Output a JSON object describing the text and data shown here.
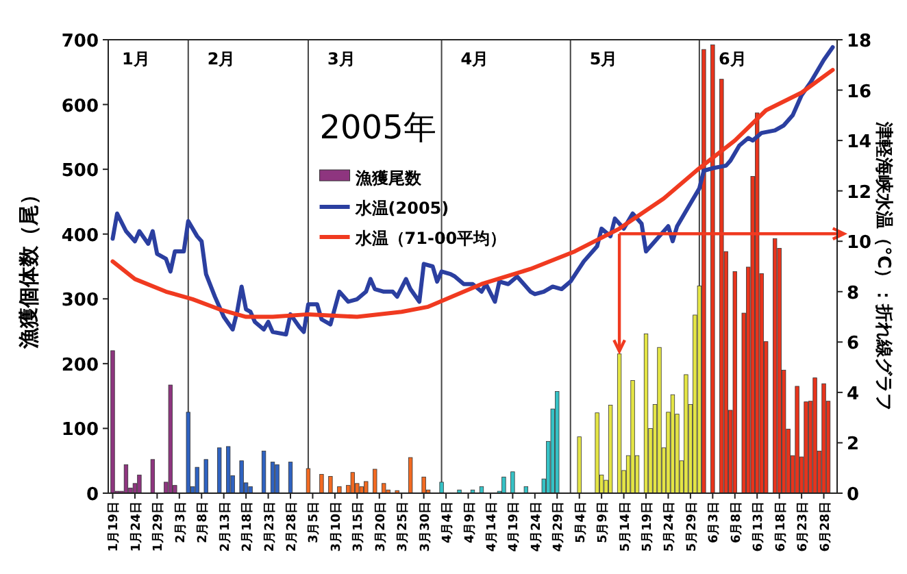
{
  "chart_data": {
    "type": "bar",
    "title": "2005年",
    "ylabel": "漁獲個体数（尾）",
    "y2label": "津軽海峡水温（°C）：折れ線グラフ",
    "xlim": [
      "2005-01-18",
      "2005-07-01"
    ],
    "xticks": [
      {
        "value": "2005-01-19",
        "label": "1月19日"
      },
      {
        "value": "2005-01-24",
        "label": "1月24日"
      },
      {
        "value": "2005-01-29",
        "label": "1月29日"
      },
      {
        "value": "2005-02-03",
        "label": "2月3日"
      },
      {
        "value": "2005-02-08",
        "label": "2月8日"
      },
      {
        "value": "2005-02-13",
        "label": "2月13日"
      },
      {
        "value": "2005-02-18",
        "label": "2月18日"
      },
      {
        "value": "2005-02-23",
        "label": "2月23日"
      },
      {
        "value": "2005-02-28",
        "label": "2月28日"
      },
      {
        "value": "2005-03-05",
        "label": "3月5日"
      },
      {
        "value": "2005-03-10",
        "label": "3月10日"
      },
      {
        "value": "2005-03-15",
        "label": "3月15日"
      },
      {
        "value": "2005-03-20",
        "label": "3月20日"
      },
      {
        "value": "2005-03-25",
        "label": "3月25日"
      },
      {
        "value": "2005-03-30",
        "label": "3月30日"
      },
      {
        "value": "2005-04-04",
        "label": "4月4日"
      },
      {
        "value": "2005-04-09",
        "label": "4月9日"
      },
      {
        "value": "2005-04-14",
        "label": "4月14日"
      },
      {
        "value": "2005-04-19",
        "label": "4月19日"
      },
      {
        "value": "2005-04-24",
        "label": "4月24日"
      },
      {
        "value": "2005-04-29",
        "label": "4月29日"
      },
      {
        "value": "2005-05-04",
        "label": "5月4日"
      },
      {
        "value": "2005-05-09",
        "label": "5月9日"
      },
      {
        "value": "2005-05-14",
        "label": "5月14日"
      },
      {
        "value": "2005-05-19",
        "label": "5月19日"
      },
      {
        "value": "2005-05-24",
        "label": "5月24日"
      },
      {
        "value": "2005-05-29",
        "label": "5月29日"
      },
      {
        "value": "2005-06-03",
        "label": "6月3日"
      },
      {
        "value": "2005-06-08",
        "label": "6月8日"
      },
      {
        "value": "2005-06-13",
        "label": "6月13日"
      },
      {
        "value": "2005-06-18",
        "label": "6月18日"
      },
      {
        "value": "2005-06-23",
        "label": "6月23日"
      },
      {
        "value": "2005-06-28",
        "label": "6月28日"
      }
    ],
    "ylim": [
      0,
      700
    ],
    "yticks": [
      0,
      100,
      200,
      300,
      400,
      500,
      600,
      700
    ],
    "y2lim": [
      0,
      18
    ],
    "y2ticks": [
      0,
      2,
      4,
      6,
      8,
      10,
      12,
      14,
      16,
      18
    ],
    "legend": "top left",
    "series": [
      {
        "name": "漁獲尾数",
        "color": "#8e357f",
        "x": [
          "2005-01-19",
          "2005-01-20",
          "2005-01-21",
          "2005-01-22",
          "2005-01-23",
          "2005-01-24",
          "2005-01-25",
          "2005-01-28",
          "2005-01-31",
          "2005-02-01",
          "2005-02-02",
          "2005-02-05",
          "2005-02-06",
          "2005-02-07",
          "2005-02-09",
          "2005-02-12",
          "2005-02-14",
          "2005-02-15",
          "2005-02-17",
          "2005-02-18",
          "2005-02-19",
          "2005-02-22",
          "2005-02-24",
          "2005-02-25",
          "2005-02-28",
          "2005-03-04",
          "2005-03-07",
          "2005-03-09",
          "2005-03-11",
          "2005-03-13",
          "2005-03-14",
          "2005-03-15",
          "2005-03-16",
          "2005-03-17",
          "2005-03-19",
          "2005-03-21",
          "2005-03-22",
          "2005-03-24",
          "2005-03-27",
          "2005-03-30",
          "2005-03-31",
          "2005-04-03",
          "2005-04-07",
          "2005-04-10",
          "2005-04-12",
          "2005-04-16",
          "2005-04-17",
          "2005-04-19",
          "2005-04-22",
          "2005-04-26",
          "2005-04-27",
          "2005-04-28",
          "2005-04-29",
          "2005-05-04",
          "2005-05-08",
          "2005-05-09",
          "2005-05-10",
          "2005-05-11",
          "2005-05-13",
          "2005-05-14",
          "2005-05-15",
          "2005-05-16",
          "2005-05-17",
          "2005-05-19",
          "2005-05-20",
          "2005-05-21",
          "2005-05-22",
          "2005-05-23",
          "2005-05-24",
          "2005-05-25",
          "2005-05-26",
          "2005-05-27",
          "2005-05-28",
          "2005-05-29",
          "2005-05-30",
          "2005-05-31",
          "2005-06-01",
          "2005-06-03",
          "2005-06-05",
          "2005-06-06",
          "2005-06-07",
          "2005-06-08",
          "2005-06-10",
          "2005-06-11",
          "2005-06-12",
          "2005-06-13",
          "2005-06-14",
          "2005-06-15",
          "2005-06-17",
          "2005-06-18",
          "2005-06-19",
          "2005-06-20",
          "2005-06-21",
          "2005-06-22",
          "2005-06-23",
          "2005-06-24",
          "2005-06-25",
          "2005-06-26",
          "2005-06-27",
          "2005-06-28",
          "2005-06-29"
        ],
        "values": [
          220,
          3,
          3,
          44,
          8,
          15,
          28,
          52,
          17,
          167,
          12,
          125,
          10,
          40,
          52,
          70,
          72,
          27,
          50,
          16,
          10,
          65,
          48,
          44,
          48,
          38,
          29,
          26,
          10,
          12,
          32,
          15,
          10,
          18,
          37,
          15,
          5,
          4,
          55,
          25,
          5,
          17,
          5,
          5,
          10,
          3,
          25,
          33,
          10,
          22,
          80,
          130,
          157,
          87,
          124,
          28,
          20,
          136,
          215,
          35,
          58,
          174,
          58,
          246,
          100,
          137,
          225,
          70,
          125,
          152,
          122,
          50,
          183,
          137,
          275,
          320,
          685,
          692,
          639,
          373,
          128,
          342,
          278,
          349,
          489,
          587,
          339,
          234,
          393,
          378,
          190,
          99,
          58,
          165,
          56,
          141,
          142,
          178,
          65,
          169,
          142
        ],
        "colors": [
          "#8e357f",
          "#8e357f",
          "#8e357f",
          "#8e357f",
          "#8e357f",
          "#8e357f",
          "#8e357f",
          "#8e357f",
          "#8e357f",
          "#8e357f",
          "#8e357f",
          "#2f62c0",
          "#2f62c0",
          "#2f62c0",
          "#2f62c0",
          "#2f62c0",
          "#2f62c0",
          "#2f62c0",
          "#2f62c0",
          "#2f62c0",
          "#2f62c0",
          "#2f62c0",
          "#2f62c0",
          "#2f62c0",
          "#2f62c0",
          "#f26a22",
          "#f26a22",
          "#f26a22",
          "#f26a22",
          "#f26a22",
          "#f26a22",
          "#f26a22",
          "#f26a22",
          "#f26a22",
          "#f26a22",
          "#f26a22",
          "#f26a22",
          "#f26a22",
          "#f26a22",
          "#f26a22",
          "#f26a22",
          "#36c2c6",
          "#36c2c6",
          "#36c2c6",
          "#36c2c6",
          "#36c2c6",
          "#36c2c6",
          "#36c2c6",
          "#36c2c6",
          "#36c2c6",
          "#36c2c6",
          "#36c2c6",
          "#36c2c6",
          "#e4e545",
          "#e4e545",
          "#e4e545",
          "#e4e545",
          "#e4e545",
          "#e4e545",
          "#e4e545",
          "#e4e545",
          "#e4e545",
          "#e4e545",
          "#e4e545",
          "#e4e545",
          "#e4e545",
          "#e4e545",
          "#e4e545",
          "#e4e545",
          "#e4e545",
          "#e4e545",
          "#e4e545",
          "#e4e545",
          "#e4e545",
          "#e4e545",
          "#e4e545",
          "#e8341c",
          "#e8341c",
          "#e8341c",
          "#e8341c",
          "#e8341c",
          "#e8341c",
          "#e8341c",
          "#e8341c",
          "#e8341c",
          "#e8341c",
          "#e8341c",
          "#e8341c",
          "#e8341c",
          "#e8341c",
          "#e8341c",
          "#e8341c",
          "#e8341c",
          "#e8341c",
          "#e8341c",
          "#e8341c",
          "#e8341c",
          "#e8341c",
          "#e8341c",
          "#e8341c",
          "#e8341c"
        ]
      },
      {
        "name": "水温(2005)",
        "type": "line",
        "axis": "y2",
        "color": "#2b3fa0",
        "x": [
          "2005-01-19",
          "2005-01-20",
          "2005-01-22",
          "2005-01-24",
          "2005-01-25",
          "2005-01-27",
          "2005-01-28",
          "2005-01-29",
          "2005-01-31",
          "2005-02-01",
          "2005-02-02",
          "2005-02-04",
          "2005-02-05",
          "2005-02-07",
          "2005-02-08",
          "2005-02-09",
          "2005-02-11",
          "2005-02-13",
          "2005-02-15",
          "2005-02-16",
          "2005-02-17",
          "2005-02-18",
          "2005-02-19",
          "2005-02-20",
          "2005-02-22",
          "2005-02-23",
          "2005-02-24",
          "2005-02-27",
          "2005-02-28",
          "2005-03-02",
          "2005-03-03",
          "2005-03-04",
          "2005-03-06",
          "2005-03-07",
          "2005-03-09",
          "2005-03-11",
          "2005-03-13",
          "2005-03-15",
          "2005-03-17",
          "2005-03-18",
          "2005-03-19",
          "2005-03-21",
          "2005-03-23",
          "2005-03-24",
          "2005-03-26",
          "2005-03-27",
          "2005-03-29",
          "2005-03-30",
          "2005-04-01",
          "2005-04-02",
          "2005-04-03",
          "2005-04-05",
          "2005-04-06",
          "2005-04-08",
          "2005-04-10",
          "2005-04-12",
          "2005-04-13",
          "2005-04-15",
          "2005-04-16",
          "2005-04-18",
          "2005-04-20",
          "2005-04-23",
          "2005-04-24",
          "2005-04-26",
          "2005-04-28",
          "2005-04-30",
          "2005-05-02",
          "2005-05-05",
          "2005-05-08",
          "2005-05-09",
          "2005-05-11",
          "2005-05-12",
          "2005-05-14",
          "2005-05-16",
          "2005-05-18",
          "2005-05-19",
          "2005-05-21",
          "2005-05-22",
          "2005-05-24",
          "2005-05-25",
          "2005-05-26",
          "2005-05-29",
          "2005-05-31",
          "2005-06-01",
          "2005-06-03",
          "2005-06-06",
          "2005-06-07",
          "2005-06-09",
          "2005-06-11",
          "2005-06-12",
          "2005-06-14",
          "2005-06-17",
          "2005-06-19",
          "2005-06-21",
          "2005-06-23",
          "2005-06-25",
          "2005-06-28",
          "2005-06-30"
        ],
        "values": [
          10.1,
          11.1,
          10.4,
          10.0,
          10.4,
          9.9,
          10.4,
          9.5,
          9.3,
          8.8,
          9.6,
          9.6,
          10.8,
          10.2,
          10.0,
          8.7,
          7.8,
          7.0,
          6.5,
          7.2,
          8.2,
          7.3,
          7.2,
          6.8,
          6.5,
          6.8,
          6.4,
          6.3,
          7.1,
          6.6,
          6.4,
          7.5,
          7.5,
          6.9,
          6.7,
          8.0,
          7.6,
          7.7,
          8.0,
          8.5,
          8.1,
          8.0,
          8.0,
          7.8,
          8.5,
          8.1,
          7.6,
          9.1,
          9.0,
          8.4,
          8.8,
          8.7,
          8.6,
          8.3,
          8.3,
          8.0,
          8.3,
          7.6,
          8.4,
          8.3,
          8.6,
          8.0,
          7.9,
          8.0,
          8.2,
          8.1,
          8.4,
          9.2,
          9.8,
          10.5,
          10.2,
          10.9,
          10.5,
          11.1,
          10.7,
          9.6,
          10.0,
          10.2,
          10.6,
          10.0,
          10.6,
          11.5,
          12.1,
          12.8,
          12.9,
          13.0,
          13.2,
          13.8,
          14.1,
          14.0,
          14.3,
          14.4,
          14.6,
          15.0,
          15.8,
          16.3,
          17.2,
          17.7
        ]
      },
      {
        "name": "水温（71-00平均）",
        "type": "line",
        "axis": "y2",
        "color": "#f03a20",
        "x": [
          "2005-01-19",
          "2005-01-24",
          "2005-01-31",
          "2005-02-06",
          "2005-02-12",
          "2005-02-18",
          "2005-02-24",
          "2005-03-04",
          "2005-03-15",
          "2005-03-25",
          "2005-03-31",
          "2005-04-04",
          "2005-04-12",
          "2005-04-23",
          "2005-05-03",
          "2005-05-13",
          "2005-05-23",
          "2005-05-31",
          "2005-06-08",
          "2005-06-15",
          "2005-06-23",
          "2005-06-30"
        ],
        "values": [
          9.2,
          8.5,
          8.0,
          7.7,
          7.3,
          7.0,
          7.0,
          7.1,
          7.0,
          7.2,
          7.4,
          7.7,
          8.3,
          8.9,
          9.6,
          10.5,
          11.7,
          12.9,
          14.0,
          15.2,
          15.9,
          16.8
        ]
      }
    ],
    "annotations": [
      "1月"
    ],
    "ref_lines": [
      {
        "axis": "x",
        "value": "2005-02-05",
        "label": "2月",
        "color": "#444444"
      },
      {
        "axis": "x",
        "value": "2005-03-04",
        "label": "3月",
        "color": "#444444"
      },
      {
        "axis": "x",
        "value": "2005-04-03",
        "label": "4月",
        "color": "#444444"
      },
      {
        "axis": "x",
        "value": "2005-05-02",
        "label": "5月",
        "color": "#444444"
      },
      {
        "axis": "x",
        "value": "2005-05-31",
        "label": "6月",
        "color": "#444444"
      },
      {
        "axis": "x",
        "value": "2005-05-13",
        "color": "#f03a20"
      },
      {
        "axis": "y2",
        "value": 10.3,
        "color": "#f03a20"
      }
    ]
  }
}
